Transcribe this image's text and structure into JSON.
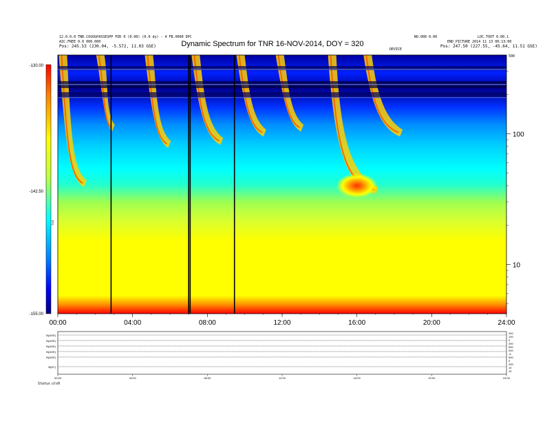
{
  "header": {
    "left_line1": "12.0.0.0 TNR.COSOGPASSESPP FOD 0 (0.00) (0.0 dy) - 4 FB.0000 DPC",
    "left_line2": "AIC.FREE 0.0 000.000",
    "left_line3": "Pos: 245.53 (230.04, -5.572, 11.03 GSE)",
    "right_line1": "NO.000 0.00",
    "right_line2": "LOC.TOOT 0.00.1",
    "right_line3": "Pos: 247.50 (227.55, -45.64, 11.51 GSE)",
    "right_small_a": "END_PICTURE 2014 11 13 00:13:00",
    "right_small_b": "DEVICE",
    "right_small_c": "500"
  },
  "chart_data": {
    "type": "heatmap",
    "title": "Dynamic Spectrum for TNR 16-NOV-2014, DOY = 320",
    "xlabel": "",
    "ylabel": "",
    "x_range_hours": [
      0,
      24
    ],
    "x_ticks": [
      "00:00",
      "04:00",
      "08:00",
      "12:00",
      "16:00",
      "20:00",
      "24:00"
    ],
    "y_scale": "log",
    "y_ticks": [
      {
        "value": 10,
        "label": "10"
      },
      {
        "value": 100,
        "label": "100"
      }
    ],
    "y_range_khz": [
      4.2,
      400
    ],
    "colorbar": {
      "min": -155.0,
      "max": -130.0,
      "tick_labels": [
        "-130.00",
        "-142.50",
        "-155.00"
      ],
      "label": "TNR",
      "colors": [
        "#7f0000",
        "#ff0000",
        "#ff8000",
        "#ffff00",
        "#c0ff40",
        "#00ffff",
        "#0080ff",
        "#0000ff",
        "#00007f"
      ]
    },
    "vertical_data_gaps_hours": [
      2.85,
      7.0,
      7.08,
      9.45
    ],
    "bursts": [
      {
        "start_hour": 0.2,
        "end_hour": 1.4,
        "peak_khz": 45
      },
      {
        "start_hour": 2.2,
        "end_hour": 2.9,
        "peak_khz": 120
      },
      {
        "start_hour": 4.8,
        "end_hour": 5.9,
        "peak_khz": 90
      },
      {
        "start_hour": 7.3,
        "end_hour": 8.7,
        "peak_khz": 95
      },
      {
        "start_hour": 9.7,
        "end_hour": 11.0,
        "peak_khz": 110
      },
      {
        "start_hour": 11.8,
        "end_hour": 13.0,
        "peak_khz": 120
      },
      {
        "start_hour": 14.6,
        "end_hour": 17.0,
        "peak_khz": 40
      },
      {
        "start_hour": 16.5,
        "end_hour": 18.3,
        "peak_khz": 110
      }
    ]
  },
  "lower_panel": {
    "row_labels": [
      "B(AGE)",
      "B(AGE)",
      "B(AGE)",
      "B(AGE)",
      "B(AGE)",
      "B(NT)"
    ],
    "right_labels": [
      "200",
      "100",
      "0",
      "200",
      "500",
      "200",
      "-6",
      "500",
      "0",
      "200",
      "10",
      "10"
    ],
    "x_ticks": [
      "00:00",
      "04:00",
      "08:00",
      "12:00",
      "16:00",
      "20:00",
      "24:00"
    ],
    "footer_label": "Status",
    "footer_value": "ulv0"
  }
}
